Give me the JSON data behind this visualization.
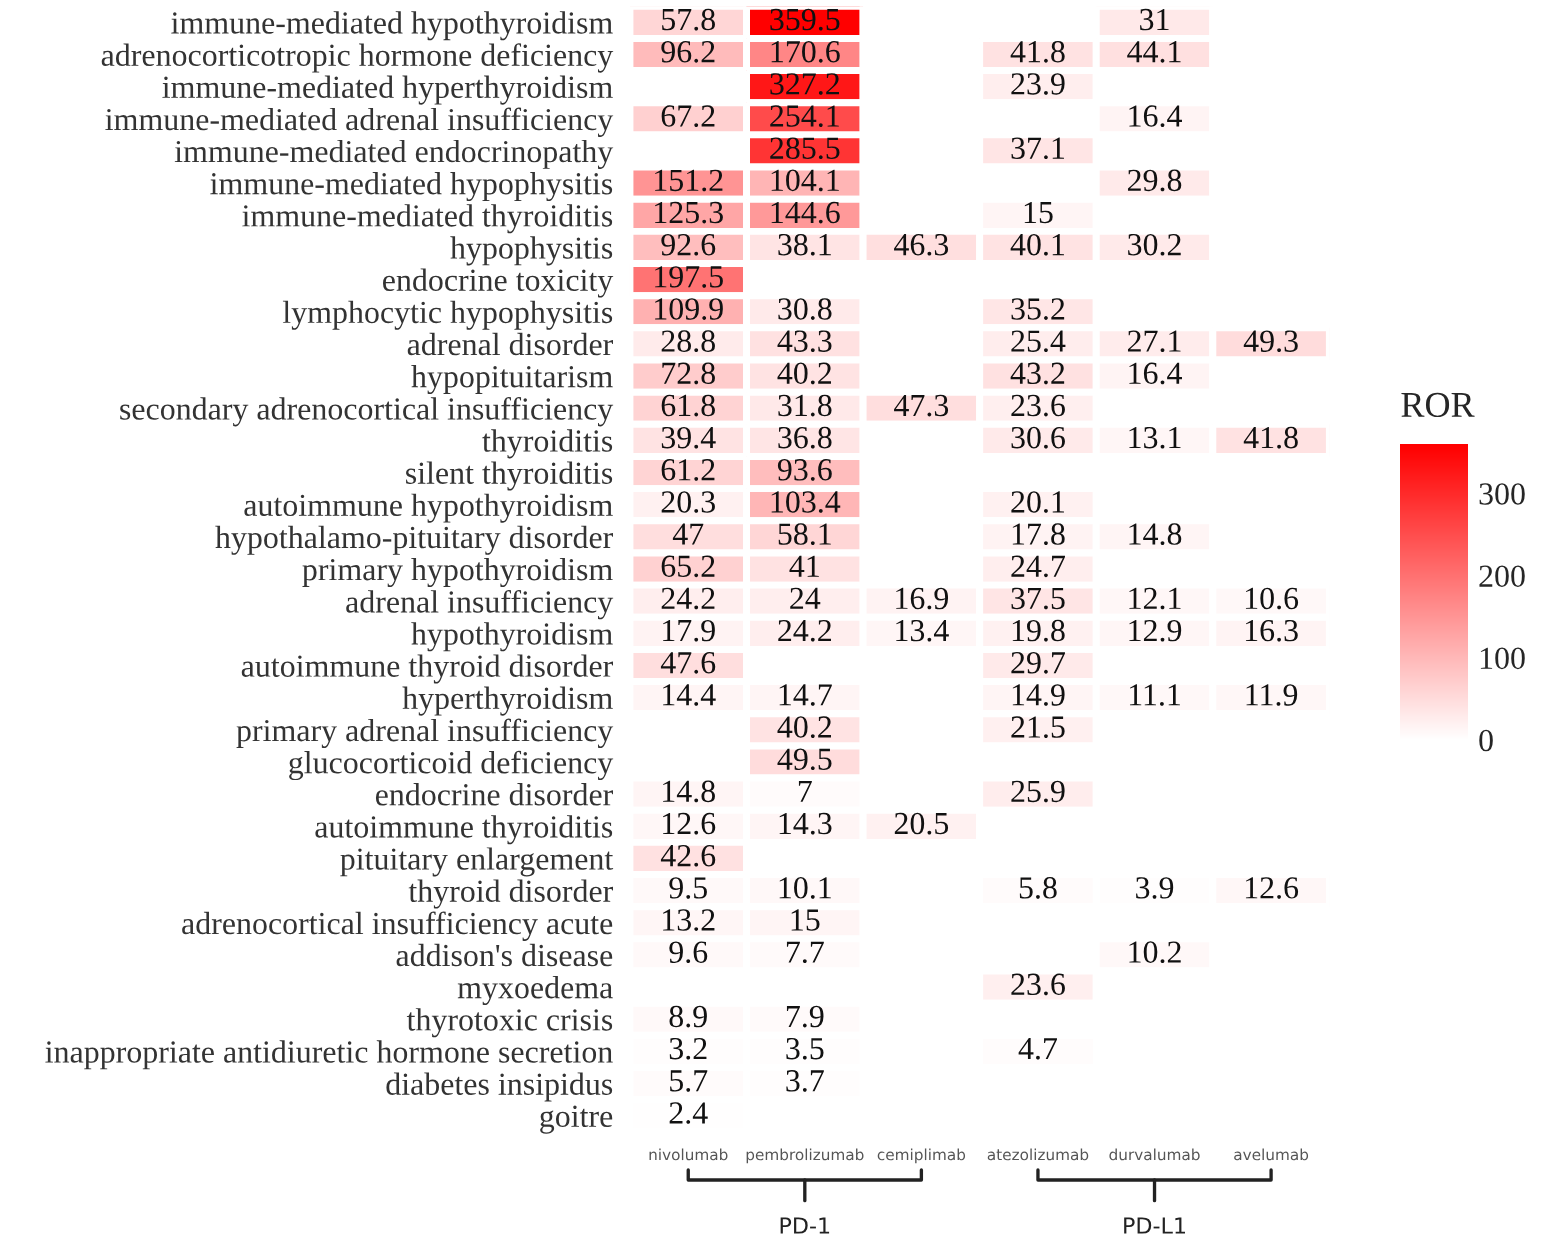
{
  "chart_data": {
    "type": "heatmap",
    "categories": [
      "nivolumab",
      "pembrolizumab",
      "cemiplimab",
      "atezolizumab",
      "durvalumab",
      "avelumab"
    ],
    "y_categories": [
      "immune-mediated hypothyroidism",
      "adrenocorticotropic hormone deficiency",
      "immune-mediated hyperthyroidism",
      "immune-mediated adrenal insufficiency",
      "immune-mediated endocrinopathy",
      "immune-mediated hypophysitis",
      "immune-mediated thyroiditis",
      "hypophysitis",
      "endocrine toxicity",
      "lymphocytic hypophysitis",
      "adrenal disorder",
      "hypopituitarism",
      "secondary adrenocortical insufficiency",
      "thyroiditis",
      "silent thyroiditis",
      "autoimmune hypothyroidism",
      "hypothalamo-pituitary disorder",
      "primary hypothyroidism",
      "adrenal insufficiency",
      "hypothyroidism",
      "autoimmune thyroid disorder",
      "hyperthyroidism",
      "primary adrenal insufficiency",
      "glucocorticoid deficiency",
      "endocrine disorder",
      "autoimmune thyroiditis",
      "pituitary enlargement",
      "thyroid disorder",
      "adrenocortical insufficiency acute",
      "addison's disease",
      "myxoedema",
      "thyrotoxic crisis",
      "inappropriate antidiuretic hormone secretion",
      "diabetes insipidus",
      "goitre"
    ],
    "cells": [
      [
        57.8,
        359.5,
        null,
        null,
        31,
        null
      ],
      [
        96.2,
        170.6,
        null,
        41.8,
        44.1,
        null
      ],
      [
        null,
        327.2,
        null,
        23.9,
        null,
        null
      ],
      [
        67.2,
        254.1,
        null,
        null,
        16.4,
        null
      ],
      [
        null,
        285.5,
        null,
        37.1,
        null,
        null
      ],
      [
        151.2,
        104.1,
        null,
        null,
        29.8,
        null
      ],
      [
        125.3,
        144.6,
        null,
        15,
        null,
        null
      ],
      [
        92.6,
        38.1,
        46.3,
        40.1,
        30.2,
        null
      ],
      [
        197.5,
        null,
        null,
        null,
        null,
        null
      ],
      [
        109.9,
        30.8,
        null,
        35.2,
        null,
        null
      ],
      [
        28.8,
        43.3,
        null,
        25.4,
        27.1,
        49.3
      ],
      [
        72.8,
        40.2,
        null,
        43.2,
        16.4,
        null
      ],
      [
        61.8,
        31.8,
        47.3,
        23.6,
        null,
        null
      ],
      [
        39.4,
        36.8,
        null,
        30.6,
        13.1,
        41.8
      ],
      [
        61.2,
        93.6,
        null,
        null,
        null,
        null
      ],
      [
        20.3,
        103.4,
        null,
        20.1,
        null,
        null
      ],
      [
        47,
        58.1,
        null,
        17.8,
        14.8,
        null
      ],
      [
        65.2,
        41,
        null,
        24.7,
        null,
        null
      ],
      [
        24.2,
        24,
        16.9,
        37.5,
        12.1,
        10.6
      ],
      [
        17.9,
        24.2,
        13.4,
        19.8,
        12.9,
        16.3
      ],
      [
        47.6,
        null,
        null,
        29.7,
        null,
        null
      ],
      [
        14.4,
        14.7,
        null,
        14.9,
        11.1,
        11.9
      ],
      [
        null,
        40.2,
        null,
        21.5,
        null,
        null
      ],
      [
        null,
        49.5,
        null,
        null,
        null,
        null
      ],
      [
        14.8,
        7,
        null,
        25.9,
        null,
        null
      ],
      [
        12.6,
        14.3,
        20.5,
        null,
        null,
        null
      ],
      [
        42.6,
        null,
        null,
        null,
        null,
        null
      ],
      [
        9.5,
        10.1,
        null,
        5.8,
        3.9,
        12.6
      ],
      [
        13.2,
        15,
        null,
        null,
        null,
        null
      ],
      [
        9.6,
        7.7,
        null,
        null,
        10.2,
        null
      ],
      [
        null,
        null,
        null,
        23.6,
        null,
        null
      ],
      [
        8.9,
        7.9,
        null,
        null,
        null,
        null
      ],
      [
        3.2,
        3.5,
        null,
        4.7,
        null,
        null
      ],
      [
        5.7,
        3.7,
        null,
        null,
        null,
        null
      ],
      [
        2.4,
        null,
        null,
        null,
        null,
        null
      ]
    ],
    "data_labels": true,
    "clabel": "ROR",
    "clim": [
      0,
      359.5
    ],
    "cticks": [
      0,
      100,
      200,
      300
    ],
    "annotations": [
      "PD-1",
      "PD-L1"
    ]
  }
}
